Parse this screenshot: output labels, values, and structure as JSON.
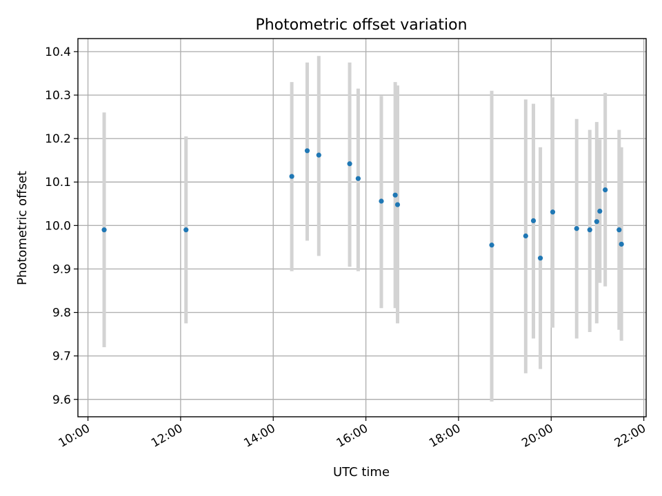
{
  "chart_data": {
    "type": "scatter",
    "title": "Photometric offset variation",
    "xlabel": "UTC time",
    "ylabel": "Photometric offset",
    "x_type": "time",
    "xlim": [
      "09:47",
      "22:03"
    ],
    "ylim": [
      9.56,
      10.43
    ],
    "x_ticks": [
      "10:00",
      "12:00",
      "14:00",
      "16:00",
      "18:00",
      "20:00",
      "22:00"
    ],
    "y_ticks": [
      "9.6",
      "9.7",
      "9.8",
      "9.9",
      "10.0",
      "10.1",
      "10.2",
      "10.3",
      "10.4"
    ],
    "grid": true,
    "colors": {
      "point": "#1f77b4",
      "errorbar": "#d3d3d3",
      "grid": "#b0b0b0"
    },
    "points": [
      {
        "x": "10:21",
        "y": 9.99,
        "ylow": 9.72,
        "yhigh": 10.26
      },
      {
        "x": "12:07",
        "y": 9.99,
        "ylow": 9.775,
        "yhigh": 10.205
      },
      {
        "x": "14:24",
        "y": 10.113,
        "ylow": 9.895,
        "yhigh": 10.33
      },
      {
        "x": "14:44",
        "y": 10.172,
        "ylow": 9.965,
        "yhigh": 10.375
      },
      {
        "x": "14:59",
        "y": 10.162,
        "ylow": 9.93,
        "yhigh": 10.39
      },
      {
        "x": "15:39",
        "y": 10.142,
        "ylow": 9.905,
        "yhigh": 10.375
      },
      {
        "x": "15:50",
        "y": 10.108,
        "ylow": 9.895,
        "yhigh": 10.315
      },
      {
        "x": "16:20",
        "y": 10.056,
        "ylow": 9.81,
        "yhigh": 10.298
      },
      {
        "x": "16:38",
        "y": 10.07,
        "ylow": 9.81,
        "yhigh": 10.33
      },
      {
        "x": "16:41",
        "y": 10.048,
        "ylow": 9.775,
        "yhigh": 10.322
      },
      {
        "x": "18:43",
        "y": 9.955,
        "ylow": 9.595,
        "yhigh": 10.31
      },
      {
        "x": "19:27",
        "y": 9.976,
        "ylow": 9.66,
        "yhigh": 10.29
      },
      {
        "x": "19:37",
        "y": 10.011,
        "ylow": 9.74,
        "yhigh": 10.28
      },
      {
        "x": "19:46",
        "y": 9.925,
        "ylow": 9.67,
        "yhigh": 10.18
      },
      {
        "x": "20:02",
        "y": 10.031,
        "ylow": 9.765,
        "yhigh": 10.295
      },
      {
        "x": "20:33",
        "y": 9.993,
        "ylow": 9.74,
        "yhigh": 10.245
      },
      {
        "x": "20:50",
        "y": 9.99,
        "ylow": 9.755,
        "yhigh": 10.22
      },
      {
        "x": "20:59",
        "y": 10.009,
        "ylow": 9.775,
        "yhigh": 10.238
      },
      {
        "x": "21:03",
        "y": 10.033,
        "ylow": 9.868,
        "yhigh": 10.198
      },
      {
        "x": "21:10",
        "y": 10.082,
        "ylow": 9.86,
        "yhigh": 10.305
      },
      {
        "x": "21:28",
        "y": 9.99,
        "ylow": 9.76,
        "yhigh": 10.22
      },
      {
        "x": "21:31",
        "y": 9.957,
        "ylow": 9.735,
        "yhigh": 10.18
      }
    ]
  }
}
